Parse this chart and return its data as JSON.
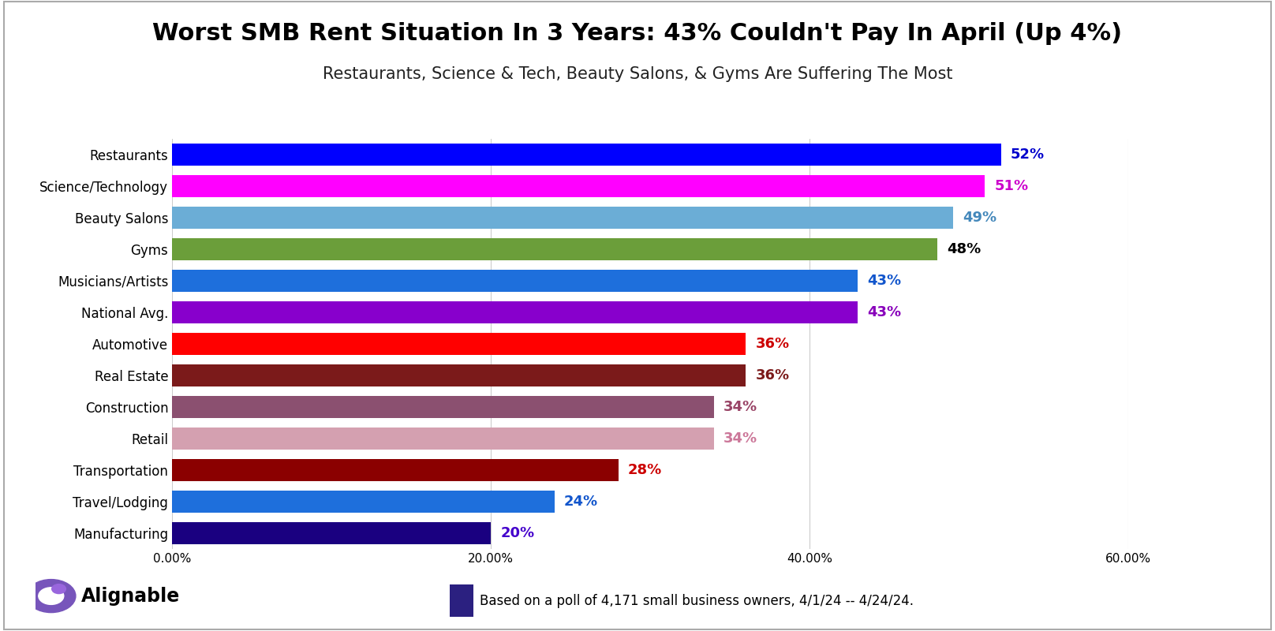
{
  "title": "Worst SMB Rent Situation In 3 Years: 43% Couldn't Pay In April (Up 4%)",
  "subtitle": "Restaurants, Science & Tech, Beauty Salons, & Gyms Are Suffering The Most",
  "categories": [
    "Manufacturing",
    "Travel/Lodging",
    "Transportation",
    "Retail",
    "Construction",
    "Real Estate",
    "Automotive",
    "National Avg.",
    "Musicians/Artists",
    "Gyms",
    "Beauty Salons",
    "Science/Technology",
    "Restaurants"
  ],
  "values": [
    20,
    24,
    28,
    34,
    34,
    36,
    36,
    43,
    43,
    48,
    49,
    51,
    52
  ],
  "bar_colors": [
    "#1a0080",
    "#1e6fdc",
    "#8b0000",
    "#d4a0b0",
    "#8b5070",
    "#7b1a1a",
    "#ff0000",
    "#8800cc",
    "#1e6fdc",
    "#6b9e3a",
    "#6badd6",
    "#ff00ff",
    "#0000ff"
  ],
  "label_colors": [
    "#4400cc",
    "#1155cc",
    "#cc0000",
    "#cc7799",
    "#994466",
    "#7b1a1a",
    "#cc0000",
    "#8800bb",
    "#1155cc",
    "#000000",
    "#4488bb",
    "#cc00cc",
    "#0000cc"
  ],
  "pct_labels": [
    "20%",
    "24%",
    "28%",
    "34%",
    "34%",
    "36%",
    "36%",
    "43%",
    "43%",
    "48%",
    "49%",
    "51%",
    "52%"
  ],
  "xlim": [
    0,
    60
  ],
  "xtick_labels": [
    "0.00%",
    "20.00%",
    "40.00%",
    "60.00%"
  ],
  "xtick_values": [
    0,
    20,
    40,
    60
  ],
  "background_color": "#ffffff",
  "grid_color": "#cccccc",
  "title_fontsize": 22,
  "subtitle_fontsize": 15,
  "footnote": "Based on a poll of 4,171 small business owners, 4/1/24 -- 4/24/24.",
  "legend_color": "#2b2080"
}
